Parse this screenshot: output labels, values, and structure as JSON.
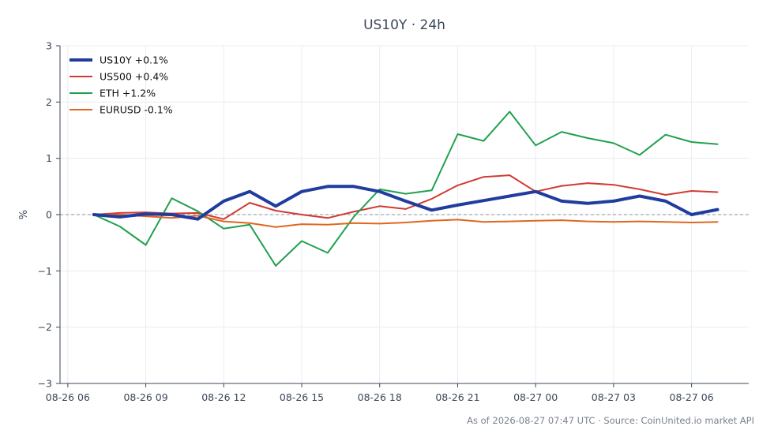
{
  "chart_data": {
    "type": "line",
    "title": "US10Y · 24h",
    "xlabel": "",
    "ylabel": "%",
    "ylim": [
      -3,
      3
    ],
    "x_range_hours": [
      -0.3,
      26.2
    ],
    "x_ticks": [
      {
        "label": "08-26 06",
        "h": 0
      },
      {
        "label": "08-26 09",
        "h": 3
      },
      {
        "label": "08-26 12",
        "h": 6
      },
      {
        "label": "08-26 15",
        "h": 9
      },
      {
        "label": "08-26 18",
        "h": 12
      },
      {
        "label": "08-26 21",
        "h": 15
      },
      {
        "label": "08-27 00",
        "h": 18
      },
      {
        "label": "08-27 03",
        "h": 21
      },
      {
        "label": "08-27 06",
        "h": 24
      }
    ],
    "y_ticks": [
      {
        "v": 3,
        "label": "3"
      },
      {
        "v": 2,
        "label": "2"
      },
      {
        "v": 1,
        "label": "1"
      },
      {
        "v": 0,
        "label": "0"
      },
      {
        "v": -1,
        "label": "−1"
      },
      {
        "v": -2,
        "label": "−2"
      },
      {
        "v": -3,
        "label": "−3"
      }
    ],
    "x_hours": [
      1,
      2,
      3,
      4,
      5,
      6,
      7,
      8,
      9,
      10,
      11,
      12,
      13,
      14,
      15,
      16,
      17,
      18,
      19,
      20,
      21,
      22,
      23,
      24,
      25
    ],
    "series": [
      {
        "name": "US10Y +0.1%",
        "color": "#1f3c9e",
        "width": 4,
        "values": [
          0.0,
          -0.04,
          0.01,
          0.0,
          -0.08,
          0.24,
          0.41,
          0.15,
          0.41,
          0.5,
          0.5,
          0.41,
          0.24,
          0.08,
          0.17,
          0.25,
          0.33,
          0.41,
          0.24,
          0.2,
          0.24,
          0.33,
          0.24,
          0.0,
          0.09
        ]
      },
      {
        "name": "US500 +0.4%",
        "color": "#d03a33",
        "width": 2,
        "values": [
          0.0,
          0.03,
          0.04,
          0.02,
          0.03,
          -0.08,
          0.21,
          0.07,
          0.0,
          -0.06,
          0.05,
          0.15,
          0.1,
          0.28,
          0.52,
          0.67,
          0.7,
          0.41,
          0.51,
          0.56,
          0.53,
          0.45,
          0.35,
          0.42,
          0.4
        ]
      },
      {
        "name": "ETH +1.2%",
        "color": "#22a04f",
        "width": 2,
        "values": [
          0.0,
          -0.21,
          -0.54,
          0.29,
          0.06,
          -0.25,
          -0.18,
          -0.91,
          -0.47,
          -0.68,
          -0.04,
          0.45,
          0.37,
          0.43,
          1.43,
          1.31,
          1.83,
          1.23,
          1.47,
          1.36,
          1.27,
          1.06,
          1.42,
          1.29,
          1.25
        ]
      },
      {
        "name": "EURUSD -0.1%",
        "color": "#e0661f",
        "width": 2,
        "values": [
          0.0,
          0.0,
          -0.03,
          -0.06,
          -0.02,
          -0.12,
          -0.15,
          -0.22,
          -0.17,
          -0.18,
          -0.15,
          -0.16,
          -0.14,
          -0.11,
          -0.09,
          -0.13,
          -0.12,
          -0.11,
          -0.1,
          -0.12,
          -0.13,
          -0.12,
          -0.13,
          -0.14,
          -0.13
        ]
      }
    ],
    "legend_position": "top-left",
    "grid": true,
    "zero_line": true,
    "footer": "As of 2026-08-27 07:47 UTC · Source: CoinUnited.io market API"
  }
}
